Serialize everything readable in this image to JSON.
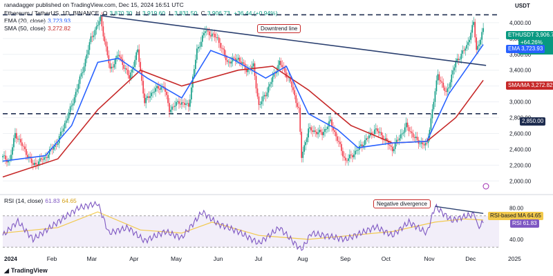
{
  "header": {
    "publisher": "ranadagger published on TradingView.com, Dec 15, 2024 16:51 UTC",
    "symbol": "Ethereum / TetherUS, 1D, BINANCE",
    "o_label": "O",
    "o": "3,870.30",
    "h_label": "H",
    "h": "3,919.60",
    "l_label": "L",
    "l": "3,831.50",
    "c_label": "C",
    "c": "3,906.73",
    "change": "+36.44 (+0.94%)",
    "ema_text": "EMA (20, close)",
    "ema_value": "3,723.93",
    "sma_text": "SMA (50, close)",
    "sma_value": "3,272.82"
  },
  "axis": {
    "currency": "USDT",
    "price_ticks": [
      "4,000.00",
      "3,800.00",
      "3,600.00",
      "3,400.00",
      "3,200.00",
      "3,000.00",
      "2,800.00",
      "2,600.00",
      "2,400.00",
      "2,200.00",
      "2,000.00"
    ],
    "rsi_ticks": [
      "80.00",
      "40.00"
    ],
    "months": [
      "2024",
      "Feb",
      "Mar",
      "Apr",
      "May",
      "Jun",
      "Jul",
      "Aug",
      "Sep",
      "Oct",
      "Nov",
      "Dec",
      "2025"
    ]
  },
  "badges": {
    "ticker": "ETHUSDT",
    "price": "3,906.73",
    "change": "+64.26%",
    "timer": "07:08:02",
    "ema_label": "EMA",
    "ema_value": "3,723.93",
    "sma_label": "SMA/MA",
    "sma_value": "3,272.82",
    "level_value": "2,850.00",
    "rsi_ma_label": "RSI-based MA",
    "rsi_ma_value": "64.65",
    "rsi_label": "RSI",
    "rsi_value": "61.83"
  },
  "annotations": {
    "downtrend": "Downtrend line",
    "divergence": "Negative divergence"
  },
  "rsi_header": {
    "title": "RSI (14, close)",
    "rsi": "61.83",
    "ma": "64.65"
  },
  "footer": {
    "brand": "TradingView"
  },
  "colors": {
    "up": "#089981",
    "down": "#f23645",
    "ema": "#2962ff",
    "sma": "#c62828",
    "rsi": "#7e57c2",
    "rsi_ma": "#f2c94c",
    "trend": "#2a3f6f"
  },
  "chart_data": [
    {
      "type": "candlestick",
      "title": "Ethereum / TetherUS, 1D, BINANCE",
      "ylim": [
        1950,
        4200
      ],
      "y_axis_label": "USDT",
      "x_ticks": [
        "2024",
        "Feb",
        "Mar",
        "Apr",
        "May",
        "Jun",
        "Jul",
        "Aug",
        "Sep",
        "Oct",
        "Nov",
        "Dec",
        "2025"
      ],
      "price_path": [
        [
          "2024-01-01",
          2300
        ],
        [
          "2024-01-06",
          2250
        ],
        [
          "2024-01-10",
          2600
        ],
        [
          "2024-01-14",
          2480
        ],
        [
          "2024-01-23",
          2200
        ],
        [
          "2024-02-01",
          2300
        ],
        [
          "2024-02-10",
          2500
        ],
        [
          "2024-02-20",
          2950
        ],
        [
          "2024-02-28",
          3400
        ],
        [
          "2024-03-05",
          3800
        ],
        [
          "2024-03-12",
          4050
        ],
        [
          "2024-03-19",
          3400
        ],
        [
          "2024-03-25",
          3600
        ],
        [
          "2024-04-02",
          3300
        ],
        [
          "2024-04-08",
          3650
        ],
        [
          "2024-04-13",
          3000
        ],
        [
          "2024-04-20",
          3150
        ],
        [
          "2024-04-27",
          3200
        ],
        [
          "2024-05-01",
          2900
        ],
        [
          "2024-05-08",
          3000
        ],
        [
          "2024-05-15",
          2950
        ],
        [
          "2024-05-21",
          3650
        ],
        [
          "2024-05-27",
          3900
        ],
        [
          "2024-06-05",
          3800
        ],
        [
          "2024-06-12",
          3500
        ],
        [
          "2024-06-20",
          3550
        ],
        [
          "2024-06-26",
          3400
        ],
        [
          "2024-07-01",
          3450
        ],
        [
          "2024-07-05",
          2950
        ],
        [
          "2024-07-10",
          3100
        ],
        [
          "2024-07-20",
          3500
        ],
        [
          "2024-07-28",
          3250
        ],
        [
          "2024-08-03",
          2900
        ],
        [
          "2024-08-05",
          2300
        ],
        [
          "2024-08-10",
          2650
        ],
        [
          "2024-08-20",
          2600
        ],
        [
          "2024-08-26",
          2750
        ],
        [
          "2024-09-06",
          2250
        ],
        [
          "2024-09-15",
          2400
        ],
        [
          "2024-09-27",
          2650
        ],
        [
          "2024-10-01",
          2600
        ],
        [
          "2024-10-10",
          2400
        ],
        [
          "2024-10-20",
          2700
        ],
        [
          "2024-10-28",
          2500
        ],
        [
          "2024-11-04",
          2450
        ],
        [
          "2024-11-12",
          3350
        ],
        [
          "2024-11-18",
          3100
        ],
        [
          "2024-11-25",
          3500
        ],
        [
          "2024-12-03",
          3700
        ],
        [
          "2024-12-08",
          4000
        ],
        [
          "2024-12-10",
          3650
        ],
        [
          "2024-12-15",
          3906.73
        ]
      ],
      "horizontal_levels": [
        4100,
        2850
      ],
      "downtrend_line": [
        [
          "2024-03-12",
          4090
        ],
        [
          "2024-12-17",
          3460
        ]
      ],
      "ema20_path": [
        [
          "2024-01-01",
          2250
        ],
        [
          "2024-02-01",
          2320
        ],
        [
          "2024-02-20",
          2700
        ],
        [
          "2024-03-10",
          3500
        ],
        [
          "2024-03-25",
          3550
        ],
        [
          "2024-04-15",
          3300
        ],
        [
          "2024-05-10",
          3050
        ],
        [
          "2024-05-31",
          3650
        ],
        [
          "2024-06-15",
          3550
        ],
        [
          "2024-07-10",
          3300
        ],
        [
          "2024-07-25",
          3450
        ],
        [
          "2024-08-10",
          2850
        ],
        [
          "2024-08-31",
          2650
        ],
        [
          "2024-09-15",
          2420
        ],
        [
          "2024-10-10",
          2480
        ],
        [
          "2024-11-04",
          2500
        ],
        [
          "2024-11-20",
          3100
        ],
        [
          "2024-12-15",
          3723.93
        ]
      ],
      "sma50_path": [
        [
          "2024-01-01",
          2050
        ],
        [
          "2024-02-10",
          2280
        ],
        [
          "2024-03-10",
          2900
        ],
        [
          "2024-04-10",
          3400
        ],
        [
          "2024-05-10",
          3200
        ],
        [
          "2024-06-20",
          3400
        ],
        [
          "2024-07-15",
          3450
        ],
        [
          "2024-08-10",
          3150
        ],
        [
          "2024-09-10",
          2700
        ],
        [
          "2024-10-10",
          2480
        ],
        [
          "2024-11-04",
          2500
        ],
        [
          "2024-11-25",
          2800
        ],
        [
          "2024-12-15",
          3272.82
        ]
      ]
    },
    {
      "type": "line",
      "title": "RSI (14, close)",
      "ylim": [
        25,
        90
      ],
      "bands": [
        70,
        30
      ],
      "divergence_line": [
        [
          "2024-11-10",
          82
        ],
        [
          "2024-12-15",
          73
        ]
      ],
      "rsi_path": [
        [
          "2024-01-01",
          45
        ],
        [
          "2024-01-12",
          63
        ],
        [
          "2024-01-23",
          40
        ],
        [
          "2024-02-10",
          62
        ],
        [
          "2024-02-25",
          80
        ],
        [
          "2024-03-10",
          86
        ],
        [
          "2024-03-18",
          48
        ],
        [
          "2024-04-01",
          55
        ],
        [
          "2024-04-13",
          38
        ],
        [
          "2024-04-28",
          50
        ],
        [
          "2024-05-10",
          42
        ],
        [
          "2024-05-25",
          75
        ],
        [
          "2024-06-05",
          60
        ],
        [
          "2024-06-20",
          50
        ],
        [
          "2024-07-05",
          35
        ],
        [
          "2024-07-20",
          55
        ],
        [
          "2024-08-05",
          26
        ],
        [
          "2024-08-12",
          48
        ],
        [
          "2024-09-06",
          40
        ],
        [
          "2024-09-28",
          56
        ],
        [
          "2024-10-10",
          45
        ],
        [
          "2024-10-22",
          62
        ],
        [
          "2024-11-04",
          48
        ],
        [
          "2024-11-10",
          82
        ],
        [
          "2024-11-22",
          64
        ],
        [
          "2024-12-03",
          70
        ],
        [
          "2024-12-09",
          72
        ],
        [
          "2024-12-11",
          55
        ],
        [
          "2024-12-15",
          61.83
        ]
      ],
      "rsi_ma_path": [
        [
          "2024-01-01",
          48
        ],
        [
          "2024-02-10",
          55
        ],
        [
          "2024-03-10",
          75
        ],
        [
          "2024-04-10",
          52
        ],
        [
          "2024-05-10",
          48
        ],
        [
          "2024-06-01",
          62
        ],
        [
          "2024-07-05",
          45
        ],
        [
          "2024-08-10",
          40
        ],
        [
          "2024-09-10",
          45
        ],
        [
          "2024-10-10",
          50
        ],
        [
          "2024-11-10",
          62
        ],
        [
          "2024-12-01",
          66
        ],
        [
          "2024-12-15",
          64.65
        ]
      ]
    }
  ]
}
